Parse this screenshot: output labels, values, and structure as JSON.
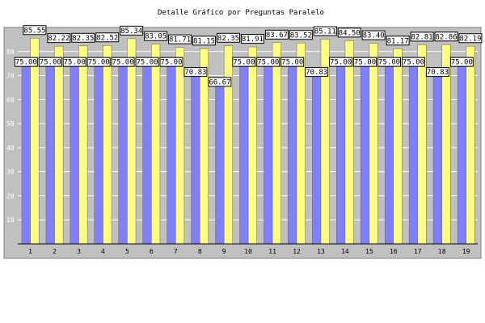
{
  "chart_data": {
    "type": "bar",
    "title": "Detalle Gráfico por Preguntas Paralelo",
    "xlabel": "",
    "ylabel": "",
    "ylim": [
      0,
      90
    ],
    "yticks": [
      10,
      20,
      30,
      40,
      50,
      60,
      70,
      80
    ],
    "grid": true,
    "legend": "none",
    "categories": [
      "1",
      "2",
      "3",
      "4",
      "5",
      "6",
      "7",
      "8",
      "9",
      "10",
      "11",
      "12",
      "13",
      "14",
      "15",
      "16",
      "17",
      "18",
      "19"
    ],
    "series": [
      {
        "color": "#8080ff",
        "values": [
          75.0,
          75.0,
          75.0,
          75.0,
          75.0,
          75.0,
          75.0,
          70.83,
          66.67,
          75.0,
          75.0,
          75.0,
          70.83,
          75.0,
          75.0,
          75.0,
          75.0,
          70.83,
          75.0
        ],
        "labels": [
          "75.00",
          "75.00",
          "75.00",
          "75.00",
          "75.00",
          "75.00",
          "75.00",
          "70.83",
          "66.67",
          "75.00",
          "75.00",
          "75.00",
          "70.83",
          "75.00",
          "75.00",
          "75.00",
          "75.00",
          "70.83",
          "75.00"
        ]
      },
      {
        "color": "#ffff80",
        "values": [
          85.55,
          82.22,
          82.35,
          82.52,
          85.34,
          83.05,
          81.71,
          81.15,
          82.35,
          81.91,
          83.67,
          83.52,
          85.11,
          84.5,
          83.4,
          81.17,
          82.81,
          82.86,
          82.19
        ],
        "labels": [
          "85.55",
          "82.22",
          "82.35",
          "82.52",
          "85.34",
          "83.05",
          "81.71",
          "81.15",
          "82.35",
          "81.91",
          "83.67",
          "83.52",
          "85.11",
          "84.50",
          "83.40",
          "81.17",
          "82.81",
          "82.86",
          "82.19"
        ]
      }
    ]
  }
}
